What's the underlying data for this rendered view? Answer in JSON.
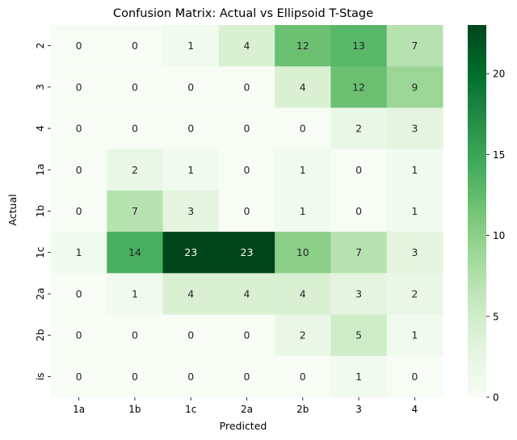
{
  "chart_data": {
    "type": "heatmap",
    "title": "Confusion Matrix: Actual vs Ellipsoid T-Stage",
    "xlabel": "Predicted",
    "ylabel": "Actual",
    "x_categories": [
      "1a",
      "1b",
      "1c",
      "2a",
      "2b",
      "3",
      "4"
    ],
    "y_categories": [
      "2",
      "3",
      "4",
      "1a",
      "1b",
      "1c",
      "2a",
      "2b",
      "is"
    ],
    "values": [
      [
        0,
        0,
        1,
        4,
        12,
        13,
        7
      ],
      [
        0,
        0,
        0,
        0,
        4,
        12,
        9
      ],
      [
        0,
        0,
        0,
        0,
        0,
        2,
        3
      ],
      [
        0,
        2,
        1,
        0,
        1,
        0,
        1
      ],
      [
        0,
        7,
        3,
        0,
        1,
        0,
        1
      ],
      [
        1,
        14,
        23,
        23,
        10,
        7,
        3
      ],
      [
        0,
        1,
        4,
        4,
        4,
        3,
        2
      ],
      [
        0,
        0,
        0,
        0,
        2,
        5,
        1
      ],
      [
        0,
        0,
        0,
        0,
        0,
        1,
        0
      ]
    ],
    "colorbar": {
      "min": 0,
      "max": 23,
      "ticks": [
        0,
        5,
        10,
        15,
        20
      ]
    },
    "colormap": [
      "#f7fcf5",
      "#e5f5e0",
      "#c7e9c0",
      "#a1d99b",
      "#74c476",
      "#41ab5d",
      "#238b45",
      "#006d2c",
      "#00441b"
    ]
  }
}
